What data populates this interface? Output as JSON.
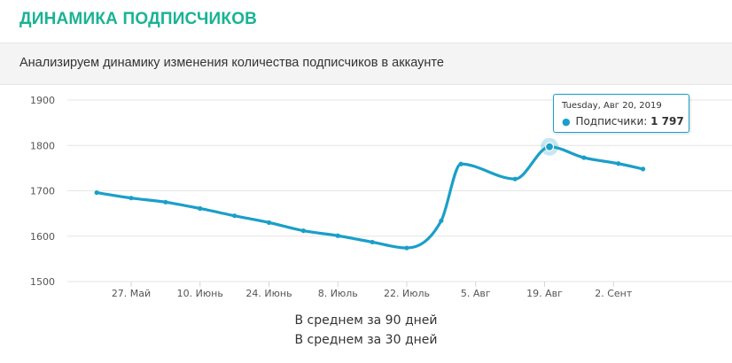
{
  "header": {
    "title": "ДИНАМИКА ПОДПИСЧИКОВ",
    "subtitle": "Анализируем динамику изменения количества подписчиков в аккаунте"
  },
  "colors": {
    "accent": "#19b394",
    "series": "#1a9fc8",
    "grid": "#e6e6e6"
  },
  "chart_data": {
    "type": "line",
    "title": "",
    "xlabel": "",
    "ylabel": "",
    "ylim": [
      1500,
      1900
    ],
    "y_ticks": [
      "1500",
      "1600",
      "1700",
      "1800",
      "1900"
    ],
    "x_ticks": [
      "27. Май",
      "10. Июнь",
      "24. Июнь",
      "8. Июль",
      "22. Июль",
      "5. Авг",
      "19. Авг",
      "2. Сент"
    ],
    "grid": true,
    "series": [
      {
        "name": "Подписчики",
        "x": [
          "2019-05-20",
          "2019-05-27",
          "2019-06-03",
          "2019-06-10",
          "2019-06-17",
          "2019-06-24",
          "2019-07-01",
          "2019-07-08",
          "2019-07-15",
          "2019-07-22",
          "2019-07-29",
          "2019-08-02",
          "2019-08-13",
          "2019-08-20",
          "2019-08-27",
          "2019-09-03",
          "2019-09-08"
        ],
        "y": [
          1696,
          1684,
          1675,
          1661,
          1645,
          1630,
          1612,
          1601,
          1587,
          1574,
          1634,
          1759,
          1726,
          1797,
          1773,
          1760,
          1748
        ]
      }
    ],
    "tooltip": {
      "date": "Tuesday, Авг 20, 2019",
      "series_label": "Подписчики:",
      "value": "1 797"
    },
    "legend": [
      "В среднем за 90 дней",
      "В среднем за 30 дней"
    ]
  }
}
